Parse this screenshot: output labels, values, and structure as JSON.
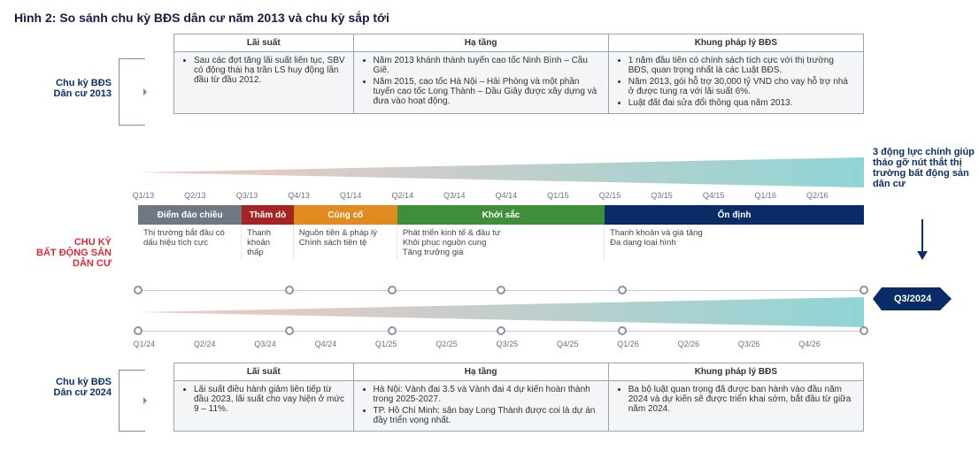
{
  "title": "Hình 2: So sánh chu kỳ BĐS dân cư năm 2013 và chu kỳ sắp tới",
  "labels": {
    "cycle2013": "Chu kỳ BĐS\nDân cư 2013",
    "cycleMain": "CHU KỲ\nBẤT ĐỘNG SẢN\nDÂN CƯ",
    "cycle2024": "Chu kỳ BĐS\nDân cư 2024",
    "rightNote": "3 động lực chính giúp tháo gỡ nút thắt thị trường bất động sản dân cư"
  },
  "columns": {
    "c1": "Lãi suất",
    "c2": "Hạ tầng",
    "c3": "Khung pháp lý BĐS"
  },
  "top": {
    "c1": [
      "Sau các đợt tăng lãi suất liên tục, SBV có động thái hạ trần LS huy động lần đầu từ đầu 2012."
    ],
    "c2": [
      "Năm 2013 khánh thành tuyến cao tốc Ninh Bình – Cầu Giẽ.",
      "Năm 2015, cao tốc Hà Nội – Hải Phòng và một phần tuyến cao tốc Long Thành – Dầu Giây được xây dựng và đưa vào hoạt động."
    ],
    "c3": [
      "1 năm đầu tiên có chính sách tích cực với thị trường BĐS, quan trọng nhất là các Luật BĐS.",
      "Năm 2013, gói hỗ trợ 30,000 tỷ VND cho vay hỗ trợ nhà ở được tung ra với lãi suất 6%.",
      "Luật đất đai sửa đổi thông qua năm 2013."
    ]
  },
  "bottom": {
    "c1": [
      "Lãi suất điều hành giảm liên tiếp từ đầu 2023, lãi suất cho vay hiện ở mức 9 – 11%."
    ],
    "c2": [
      "Hà Nội: Vành đai 3.5 và Vành đai 4 dự kiến hoàn thành trong 2025-2027.",
      "TP. Hồ Chí Minh: sân bay Long Thành được coi là dự án đầy triển vọng nhất."
    ],
    "c3": [
      "Ba bộ luật quan trọng đã được ban hành vào đầu năm 2024 và dự kiến sẽ được triển khai sớm, bắt đầu từ giữa năm 2024."
    ]
  },
  "quartersTop": [
    "Q1/13",
    "Q2/13",
    "Q3/13",
    "Q4/13",
    "Q1/14",
    "Q2/14",
    "Q3/14",
    "Q4/14",
    "Q1/15",
    "Q2/15",
    "Q3/15",
    "Q4/15",
    "Q1/16",
    "Q2/16"
  ],
  "quartersBottom": [
    "Q1/24",
    "Q2/24",
    "Q3/24",
    "Q4/24",
    "Q1/25",
    "Q2/25",
    "Q3/25",
    "Q4/25",
    "Q1/26",
    "Q2/26",
    "Q3/26",
    "Q4/26"
  ],
  "phases": [
    {
      "label": "Điểm đảo chiều",
      "color": "#6f7882",
      "widthQ": 2,
      "desc": "Thị trường bắt đầu có dấu hiệu tích cực"
    },
    {
      "label": "Thăm dò",
      "color": "#a62323",
      "widthQ": 1,
      "desc": "Thanh khoản thấp"
    },
    {
      "label": "Củng cố",
      "color": "#e08a1f",
      "widthQ": 2,
      "desc": "Nguồn tiền & pháp lý\nChính sách tiền tệ"
    },
    {
      "label": "Khởi sắc",
      "color": "#3f8f3a",
      "widthQ": 4,
      "desc": "Phát triển kinh tế & đầu tư\nKhôi phục nguồn cung\nTăng trưởng giá"
    },
    {
      "label": "Ổn định",
      "color": "#0a2c66",
      "widthQ": 5,
      "desc": "Thanh khoản và giá tăng\nĐa dạng loại hình"
    }
  ],
  "gradient": {
    "startColor": "#f5c7c3",
    "endColor": "#8fd5d5"
  },
  "arrowTag": "Q3/2024",
  "dotsBottom": [
    0,
    2.5,
    4.2,
    6.0,
    8.0,
    12.0
  ],
  "layout": {
    "axisLeft": 140,
    "axisWidth": 820,
    "phaseBarTotalQ": 14
  }
}
